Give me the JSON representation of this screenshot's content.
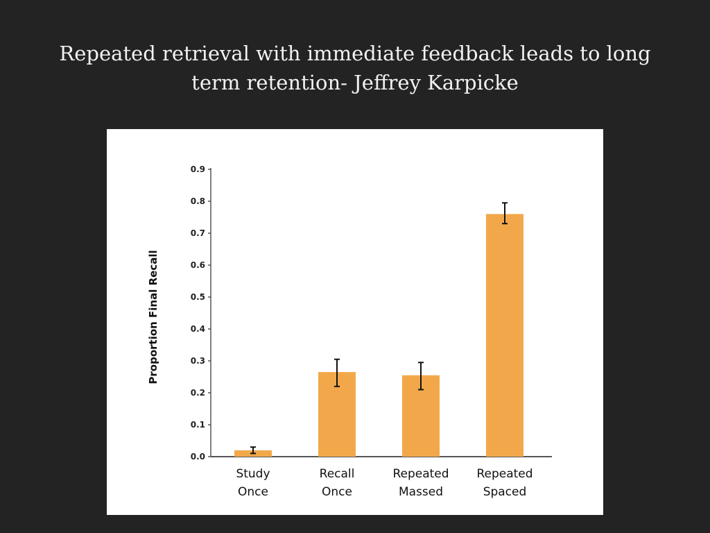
{
  "slide": {
    "title_lines": [
      "Repeated retrieval with immediate feedback leads to long",
      "term retention- Jeffrey Karpicke"
    ]
  },
  "chart_data": {
    "type": "bar",
    "categories": [
      [
        "Study",
        "Once"
      ],
      [
        "Recall",
        "Once"
      ],
      [
        "Repeated",
        "Massed"
      ],
      [
        "Repeated",
        "Spaced"
      ]
    ],
    "values": [
      0.02,
      0.265,
      0.255,
      0.76
    ],
    "error_bars": [
      [
        0.01,
        0.03
      ],
      [
        0.22,
        0.305
      ],
      [
        0.21,
        0.295
      ],
      [
        0.73,
        0.795
      ]
    ],
    "ylabel": "Proportion Final Recall",
    "yticks": [
      "0.0",
      "0.1",
      "0.2",
      "0.3",
      "0.4",
      "0.5",
      "0.6",
      "0.7",
      "0.8",
      "0.9"
    ],
    "ylim": [
      0,
      0.9
    ],
    "bar_color": "#f2a84a",
    "grid": false
  }
}
